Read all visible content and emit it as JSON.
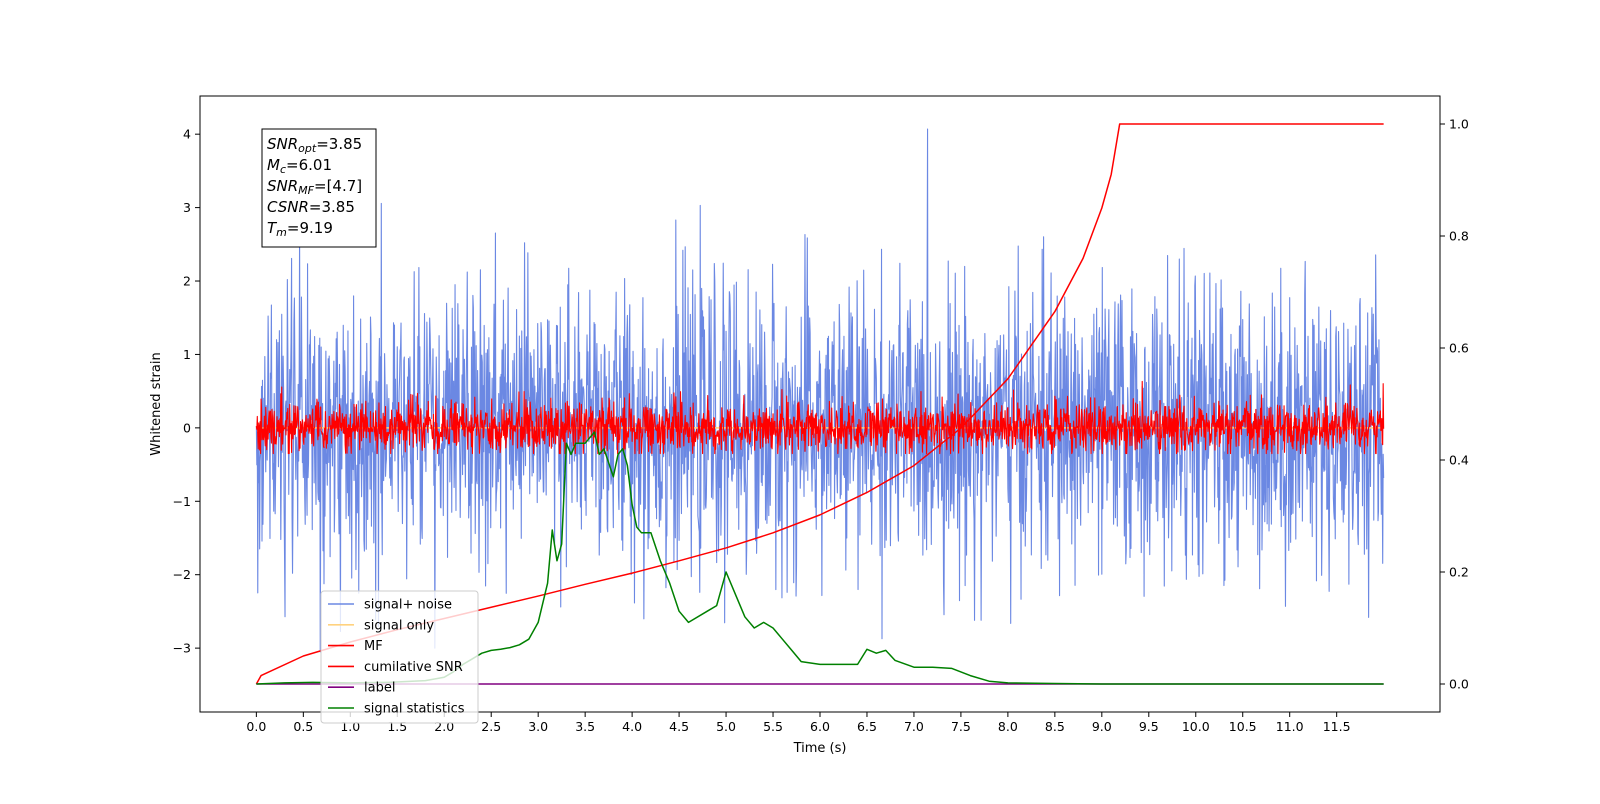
{
  "chart_data": {
    "type": "line",
    "title": "",
    "xlabel": "Time (s)",
    "ylabel": "Whitened strain",
    "xlim": [
      -0.6,
      12.6
    ],
    "ylim": [
      -3.87,
      4.52
    ],
    "y2lim": [
      -0.05,
      1.05
    ],
    "x_ticks": [
      "0.0",
      "0.5",
      "1.0",
      "1.5",
      "2.0",
      "2.5",
      "3.0",
      "3.5",
      "4.0",
      "4.5",
      "5.0",
      "5.5",
      "6.0",
      "6.5",
      "7.0",
      "7.5",
      "8.0",
      "8.5",
      "9.0",
      "9.5",
      "10.0",
      "10.5",
      "11.0",
      "11.5"
    ],
    "y_ticks": [
      "−3",
      "−2",
      "−1",
      "0",
      "1",
      "2",
      "3",
      "4"
    ],
    "y2_ticks": [
      "0.0",
      "0.2",
      "0.4",
      "0.6",
      "0.8",
      "1.0"
    ],
    "grid": false,
    "legend_position": "lower-left",
    "annotation": [
      {
        "base": "SNR",
        "sub": "opt",
        "italic": true,
        "value": "=3.85"
      },
      {
        "base": "M",
        "sub": "c",
        "italic": true,
        "value": "=6.01"
      },
      {
        "base": "SNR",
        "sub": "MF",
        "italic": true,
        "value": "=[4.7]"
      },
      {
        "base": "CSNR",
        "sub": "",
        "italic": true,
        "value": "=3.85"
      },
      {
        "base": "T",
        "sub": "m",
        "italic": true,
        "value": "=9.19"
      }
    ],
    "series": [
      {
        "name": "signal+ noise",
        "color": "#6b88e3",
        "axis": "left",
        "kind": "noise",
        "x_range": [
          0,
          12
        ],
        "amplitude_std": 0.95,
        "y_extent": [
          -3.45,
          4.17
        ]
      },
      {
        "name": "signal only",
        "color": "#ffd27f",
        "axis": "left",
        "kind": "flat",
        "x": [
          0,
          12
        ],
        "y": [
          0,
          0
        ]
      },
      {
        "name": "MF",
        "color": "#ff0000",
        "axis": "left",
        "kind": "noise",
        "x_range": [
          0,
          12
        ],
        "amplitude_std": 0.18,
        "y_extent": [
          -0.35,
          0.75
        ]
      },
      {
        "name": "cumilative SNR",
        "color": "#ff0000",
        "axis": "right",
        "x": [
          0,
          0.05,
          0.5,
          1,
          1.5,
          2,
          2.5,
          3,
          3.5,
          4,
          4.5,
          5,
          5.5,
          6,
          6.5,
          7,
          7.5,
          8,
          8.5,
          8.8,
          9.0,
          9.1,
          9.19,
          12
        ],
        "y": [
          0.0,
          0.015,
          0.05,
          0.075,
          0.097,
          0.117,
          0.137,
          0.157,
          0.178,
          0.198,
          0.22,
          0.243,
          0.27,
          0.302,
          0.342,
          0.39,
          0.457,
          0.545,
          0.665,
          0.76,
          0.85,
          0.91,
          1.0,
          1.0
        ]
      },
      {
        "name": "label",
        "color": "#800080",
        "axis": "right",
        "x": [
          0,
          12
        ],
        "y": [
          0,
          0
        ]
      },
      {
        "name": "signal statistics",
        "color": "#008000",
        "axis": "right",
        "x": [
          0,
          0.3,
          0.6,
          1.0,
          1.4,
          1.8,
          2.0,
          2.1,
          2.2,
          2.3,
          2.4,
          2.5,
          2.6,
          2.7,
          2.8,
          2.9,
          3.0,
          3.1,
          3.15,
          3.2,
          3.25,
          3.3,
          3.35,
          3.4,
          3.5,
          3.6,
          3.65,
          3.7,
          3.8,
          3.85,
          3.9,
          3.95,
          4.0,
          4.05,
          4.1,
          4.2,
          4.3,
          4.4,
          4.5,
          4.6,
          4.8,
          4.9,
          5.0,
          5.1,
          5.2,
          5.3,
          5.4,
          5.5,
          5.6,
          5.7,
          5.8,
          6.0,
          6.2,
          6.4,
          6.5,
          6.6,
          6.7,
          6.8,
          7.0,
          7.2,
          7.4,
          7.6,
          7.8,
          8.0,
          8.5,
          9.0,
          10.0,
          11.0,
          12.0
        ],
        "y": [
          0.0,
          0.002,
          0.003,
          0.002,
          0.003,
          0.006,
          0.012,
          0.022,
          0.035,
          0.045,
          0.055,
          0.06,
          0.062,
          0.065,
          0.07,
          0.08,
          0.11,
          0.18,
          0.275,
          0.22,
          0.25,
          0.43,
          0.41,
          0.43,
          0.43,
          0.45,
          0.41,
          0.42,
          0.37,
          0.41,
          0.42,
          0.39,
          0.32,
          0.28,
          0.27,
          0.27,
          0.22,
          0.18,
          0.13,
          0.11,
          0.13,
          0.14,
          0.2,
          0.16,
          0.12,
          0.1,
          0.11,
          0.1,
          0.08,
          0.06,
          0.04,
          0.035,
          0.035,
          0.035,
          0.062,
          0.055,
          0.06,
          0.042,
          0.03,
          0.03,
          0.028,
          0.015,
          0.005,
          0.002,
          0.001,
          0.0,
          0.0,
          0.0,
          0.0
        ]
      }
    ]
  }
}
